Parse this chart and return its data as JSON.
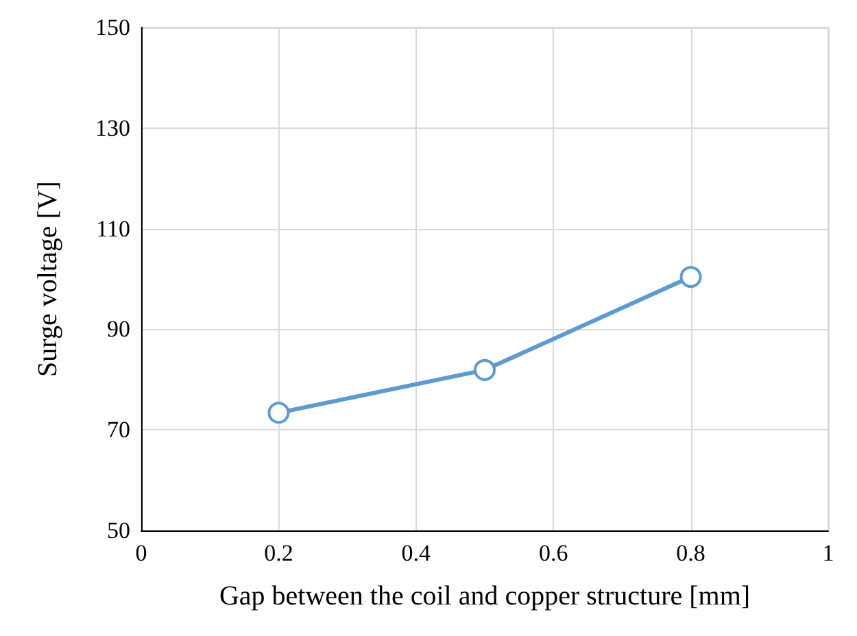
{
  "chart_data": {
    "type": "line",
    "xlabel": "Gap between the coil and copper structure [mm]",
    "ylabel": "Surge voltage [V]",
    "x": [
      0.2,
      0.5,
      0.8
    ],
    "series": [
      {
        "color": "#5b9bd5",
        "values": [
          73.4,
          81.9,
          100.4
        ]
      }
    ],
    "xlim": [
      0,
      1
    ],
    "xticks": [
      0,
      0.2,
      0.4,
      0.6,
      0.8,
      1
    ],
    "ylim": [
      50,
      150
    ],
    "yticks": [
      50,
      70,
      90,
      110,
      130,
      150
    ],
    "grid": true,
    "marker": "circle",
    "line_style": "solid"
  }
}
